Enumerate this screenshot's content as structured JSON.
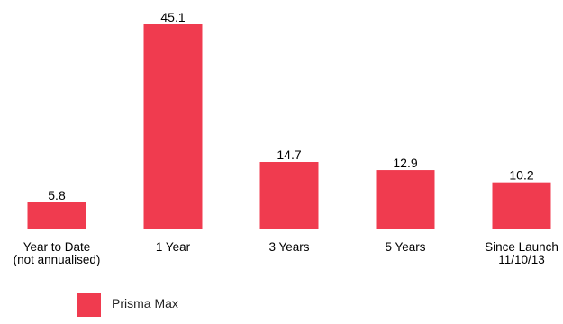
{
  "chart_data": {
    "type": "bar",
    "categories": [
      [
        "Year to Date",
        "(not annualised)"
      ],
      [
        "1 Year"
      ],
      [
        "3 Years"
      ],
      [
        "5 Years"
      ],
      [
        "Since Launch",
        "11/10/13"
      ]
    ],
    "series": [
      {
        "name": "Prisma Max",
        "values": [
          5.8,
          45.1,
          14.7,
          12.9,
          10.2
        ],
        "labels": [
          "5.8",
          "45.1",
          "14.7",
          "12.9",
          "10.2"
        ],
        "color": "#f03b4f"
      }
    ],
    "ylim": [
      0,
      45.1
    ],
    "grid": false,
    "legend_position": "bottom-left"
  }
}
